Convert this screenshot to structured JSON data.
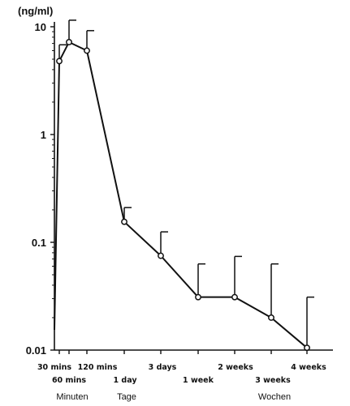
{
  "chart_data": {
    "type": "line",
    "y_unit_label": "(ng/ml)",
    "y_scale": "log",
    "ylim": [
      0.01,
      10
    ],
    "y_ticks": [
      "10",
      "1",
      "0.1",
      "0.01"
    ],
    "x_ticks_upper": [
      "30 mins",
      "120 mins",
      "3 days",
      "2 weeks",
      "4 weeks"
    ],
    "x_ticks_lower": [
      "60 mins",
      "1 day",
      "1 week",
      "3 weeks"
    ],
    "x_groups": [
      "Minuten",
      "Tage",
      "Wochen"
    ],
    "series": [
      {
        "x": [
          "30 mins",
          "60 mins",
          "120 mins",
          "1 day",
          "3 days",
          "1 week",
          "2 weeks",
          "3 weeks",
          "4 weeks"
        ],
        "values": [
          4.8,
          7.2,
          6.0,
          0.155,
          0.075,
          0.031,
          0.031,
          0.02,
          0.0105
        ],
        "error_upper": [
          6.8,
          11.5,
          9.2,
          0.21,
          0.125,
          0.063,
          0.074,
          0.063,
          0.031
        ]
      }
    ],
    "grid": false,
    "legend": "none",
    "line_color": "#111111"
  }
}
